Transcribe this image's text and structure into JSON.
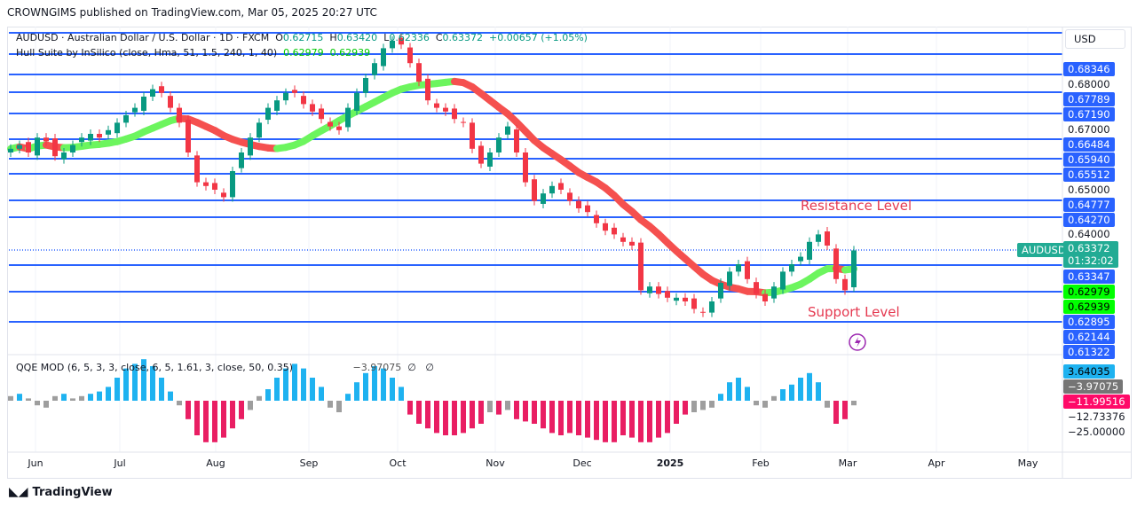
{
  "publisher_line": "CROWNGIMS published on TradingView.com, Mar 05, 2025 20:27 UTC",
  "legend": {
    "symbol": "AUDUSD · Australian Dollar / U.S. Dollar · 1D · FXCM",
    "o_label": "O",
    "o": "0.62715",
    "h_label": "H",
    "h": "0.63420",
    "l_label": "L",
    "l": "0.62336",
    "c_label": "C",
    "c": "0.63372",
    "change": "+0.00657 (+1.05%)",
    "hull": "Hull Suite by InSilico (close, Hma, 51, 1.5, 240, 1, 40)",
    "hull_v1": "0.62979",
    "hull_v2": "0.62939",
    "qqe": "QQE MOD (6, 5, 3, 3, close, 6, 5, 1.61, 3, close, 50, 0.35)",
    "qqe_v": "−3.97075",
    "qqe_na1": "∅",
    "qqe_na2": "∅"
  },
  "currency": "USD",
  "price_labels": [
    "0.68346",
    "0.67789",
    "0.67190",
    "0.66484",
    "0.65940",
    "0.65512",
    "0.64777",
    "0.64270",
    "0.63347",
    "0.62895",
    "0.62144",
    "0.61322"
  ],
  "axis_prices": [
    "0.68000",
    "0.67000",
    "0.65000",
    "0.64000"
  ],
  "last_price": {
    "symbol": "AUDUSD",
    "price": "0.63372",
    "countdown": "01:32:02"
  },
  "hull_labels": [
    "0.62979",
    "0.62939"
  ],
  "qqe_labels": {
    "a": "3.64035",
    "b": "−3.97075",
    "c": "−11.99516",
    "d": "−12.73376",
    "e": "−25.00000"
  },
  "annotations": {
    "resistance": "Resistance Level",
    "support": "Support Level"
  },
  "colors": {
    "up": "#089981",
    "down": "#f23645",
    "level": "#2962ff",
    "hull_up": "#6cf55e",
    "hull_down": "#f5504f",
    "qqe_pos": "#1eb2f0",
    "qqe_neg": "#e91e63",
    "qqe_neutral": "#9e9e9e"
  },
  "brand": "TradingView",
  "chart_data": {
    "type": "candlestick",
    "symbol": "AUDUSD",
    "timeframe": "1D",
    "x_ticks": [
      "Jun",
      "Jul",
      "Aug",
      "Sep",
      "Oct",
      "Nov",
      "Dec",
      "2025",
      "Feb",
      "Mar",
      "Apr",
      "May"
    ],
    "ylim": [
      0.608,
      0.695
    ],
    "closes": [
      0.661,
      0.662,
      0.66,
      0.664,
      0.663,
      0.659,
      0.66,
      0.662,
      0.664,
      0.665,
      0.664,
      0.666,
      0.668,
      0.67,
      0.672,
      0.675,
      0.677,
      0.676,
      0.672,
      0.668,
      0.66,
      0.652,
      0.651,
      0.65,
      0.648,
      0.655,
      0.66,
      0.664,
      0.668,
      0.672,
      0.674,
      0.676,
      0.676,
      0.673,
      0.671,
      0.669,
      0.667,
      0.666,
      0.672,
      0.676,
      0.68,
      0.684,
      0.688,
      0.69,
      0.689,
      0.684,
      0.679,
      0.674,
      0.672,
      0.671,
      0.669,
      0.668,
      0.661,
      0.657,
      0.66,
      0.664,
      0.667,
      0.66,
      0.652,
      0.647,
      0.649,
      0.651,
      0.65,
      0.647,
      0.645,
      0.644,
      0.641,
      0.639,
      0.638,
      0.636,
      0.635,
      0.623,
      0.624,
      0.622,
      0.621,
      0.621,
      0.62,
      0.618,
      0.617,
      0.62,
      0.625,
      0.628,
      0.63,
      0.626,
      0.622,
      0.62,
      0.624,
      0.628,
      0.63,
      0.632,
      0.636,
      0.638,
      0.635,
      0.626,
      0.623,
      0.6337
    ],
    "levels": [
      0.68346,
      0.67789,
      0.6719,
      0.66484,
      0.6594,
      0.65512,
      0.64777,
      0.6427,
      0.63347,
      0.62895
    ],
    "qqe_values": [
      2,
      3,
      1,
      -2,
      -3,
      2,
      3,
      1,
      2,
      3,
      4,
      6,
      10,
      14,
      16,
      18,
      15,
      10,
      4,
      -2,
      -8,
      -15,
      -18,
      -18,
      -16,
      -12,
      -8,
      -4,
      2,
      5,
      10,
      14,
      16,
      14,
      10,
      6,
      -3,
      -5,
      3,
      8,
      12,
      15,
      14,
      10,
      6,
      -6,
      -10,
      -12,
      -14,
      -15,
      -15,
      -14,
      -12,
      -10,
      -5,
      -6,
      -4,
      -8,
      -9,
      -10,
      -12,
      -14,
      -15,
      -14,
      -15,
      -16,
      -17,
      -18,
      -18,
      -15,
      -16,
      -18,
      -18,
      -16,
      -14,
      -10,
      -6,
      -5,
      -4,
      -3,
      3,
      8,
      10,
      6,
      -2,
      -3,
      2,
      5,
      7,
      10,
      12,
      8,
      -3,
      -10,
      -8,
      -2
    ]
  }
}
